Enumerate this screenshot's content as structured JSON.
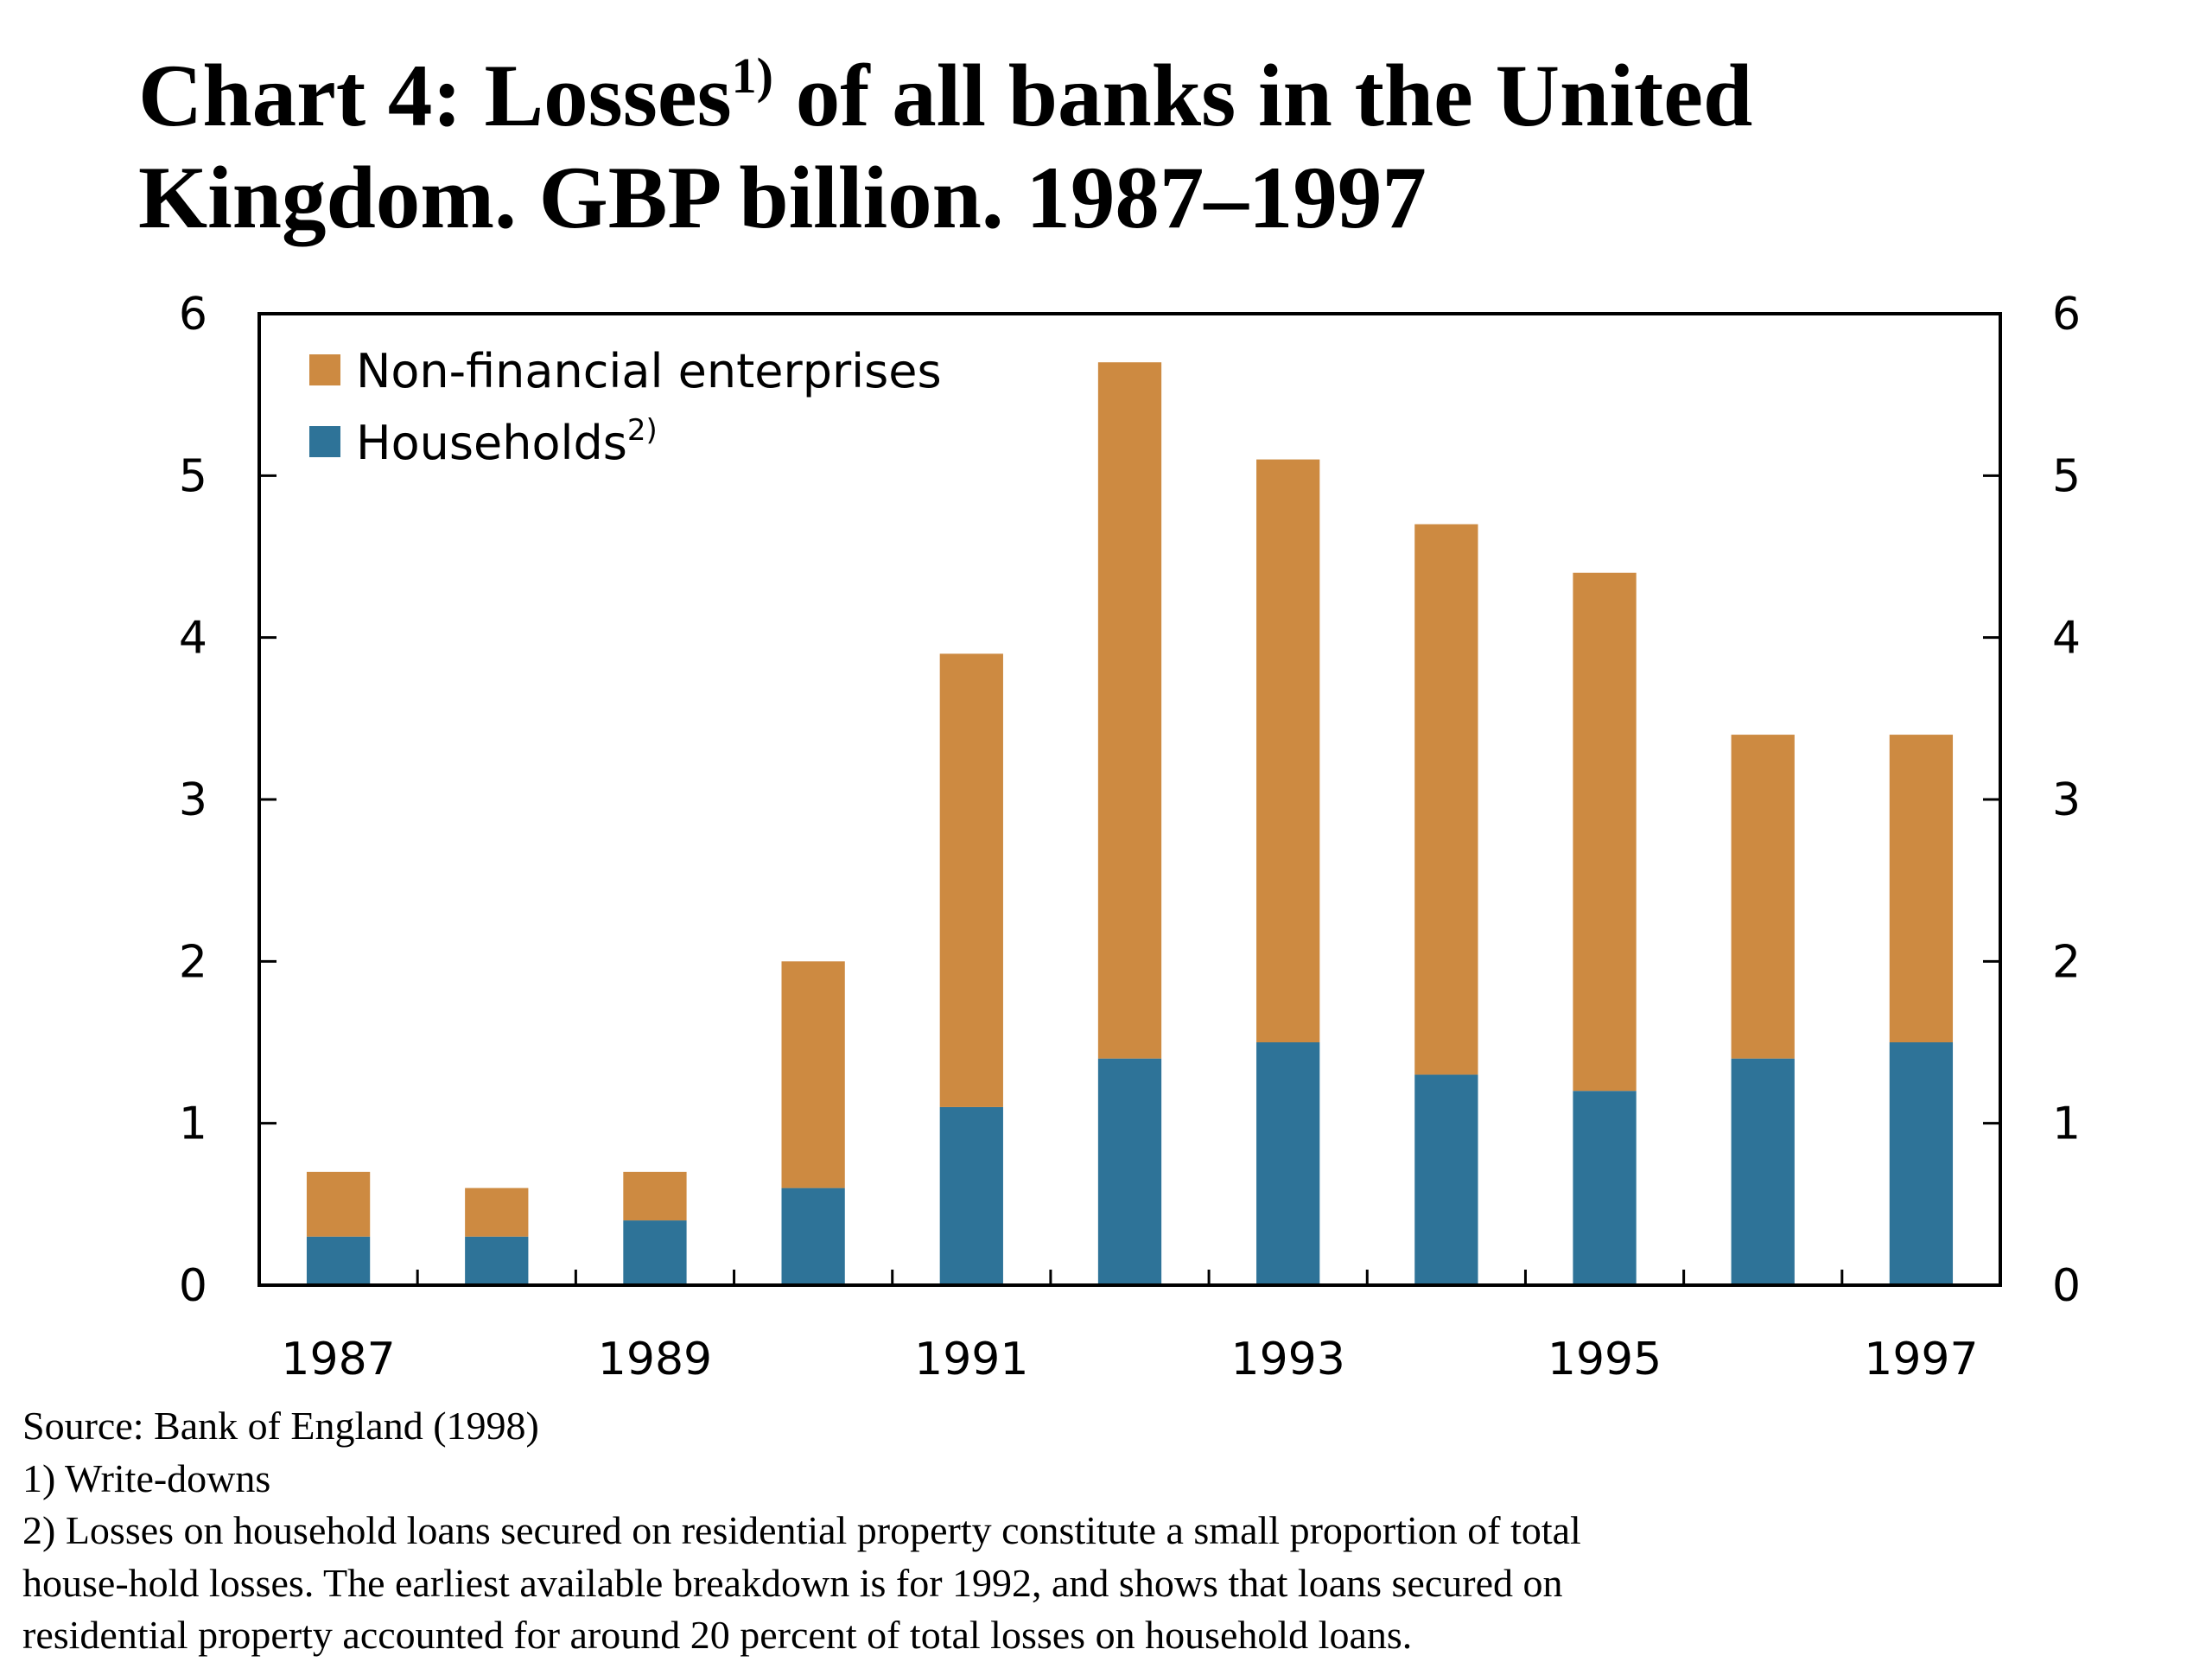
{
  "title": {
    "prefix": "Chart 4: Losses",
    "sup": "1)",
    "line1_rest": " of all banks in the United",
    "line2": "Kingdom. GBP billion. 1987–1997"
  },
  "notes": {
    "source": "Source: Bank of England (1998)",
    "note1": "1) Write-downs",
    "note2_line1": "2) Losses on household loans secured on residential property constitute a small proportion of total",
    "note2_line2": "house-hold losses. The earliest available breakdown is for 1992, and shows that loans secured on",
    "note2_line3": "residential property accounted for around 20 percent of total losses on household loans."
  },
  "chart_data": {
    "type": "bar",
    "stacked": true,
    "categories": [
      "1987",
      "1988",
      "1989",
      "1990",
      "1991",
      "1992",
      "1993",
      "1994",
      "1995",
      "1996",
      "1997"
    ],
    "x_tick_labels": [
      "1987",
      "",
      "1989",
      "",
      "1991",
      "",
      "1993",
      "",
      "1995",
      "",
      "1997"
    ],
    "series": [
      {
        "name": "Households",
        "name_sup": "2)",
        "color": "#2e7398",
        "values": [
          0.3,
          0.3,
          0.4,
          0.6,
          1.1,
          1.4,
          1.5,
          1.3,
          1.2,
          1.4,
          1.5
        ]
      },
      {
        "name": "Non-financial enterprises",
        "color": "#cd8a41",
        "values": [
          0.4,
          0.3,
          0.3,
          1.4,
          2.8,
          4.3,
          3.6,
          3.4,
          3.2,
          2.0,
          1.9
        ]
      }
    ],
    "ylim": [
      0,
      6
    ],
    "yticks": [
      0,
      1,
      2,
      3,
      4,
      5,
      6
    ],
    "y_axis_both_sides": true,
    "legend_position": "top-left",
    "grid": false
  }
}
